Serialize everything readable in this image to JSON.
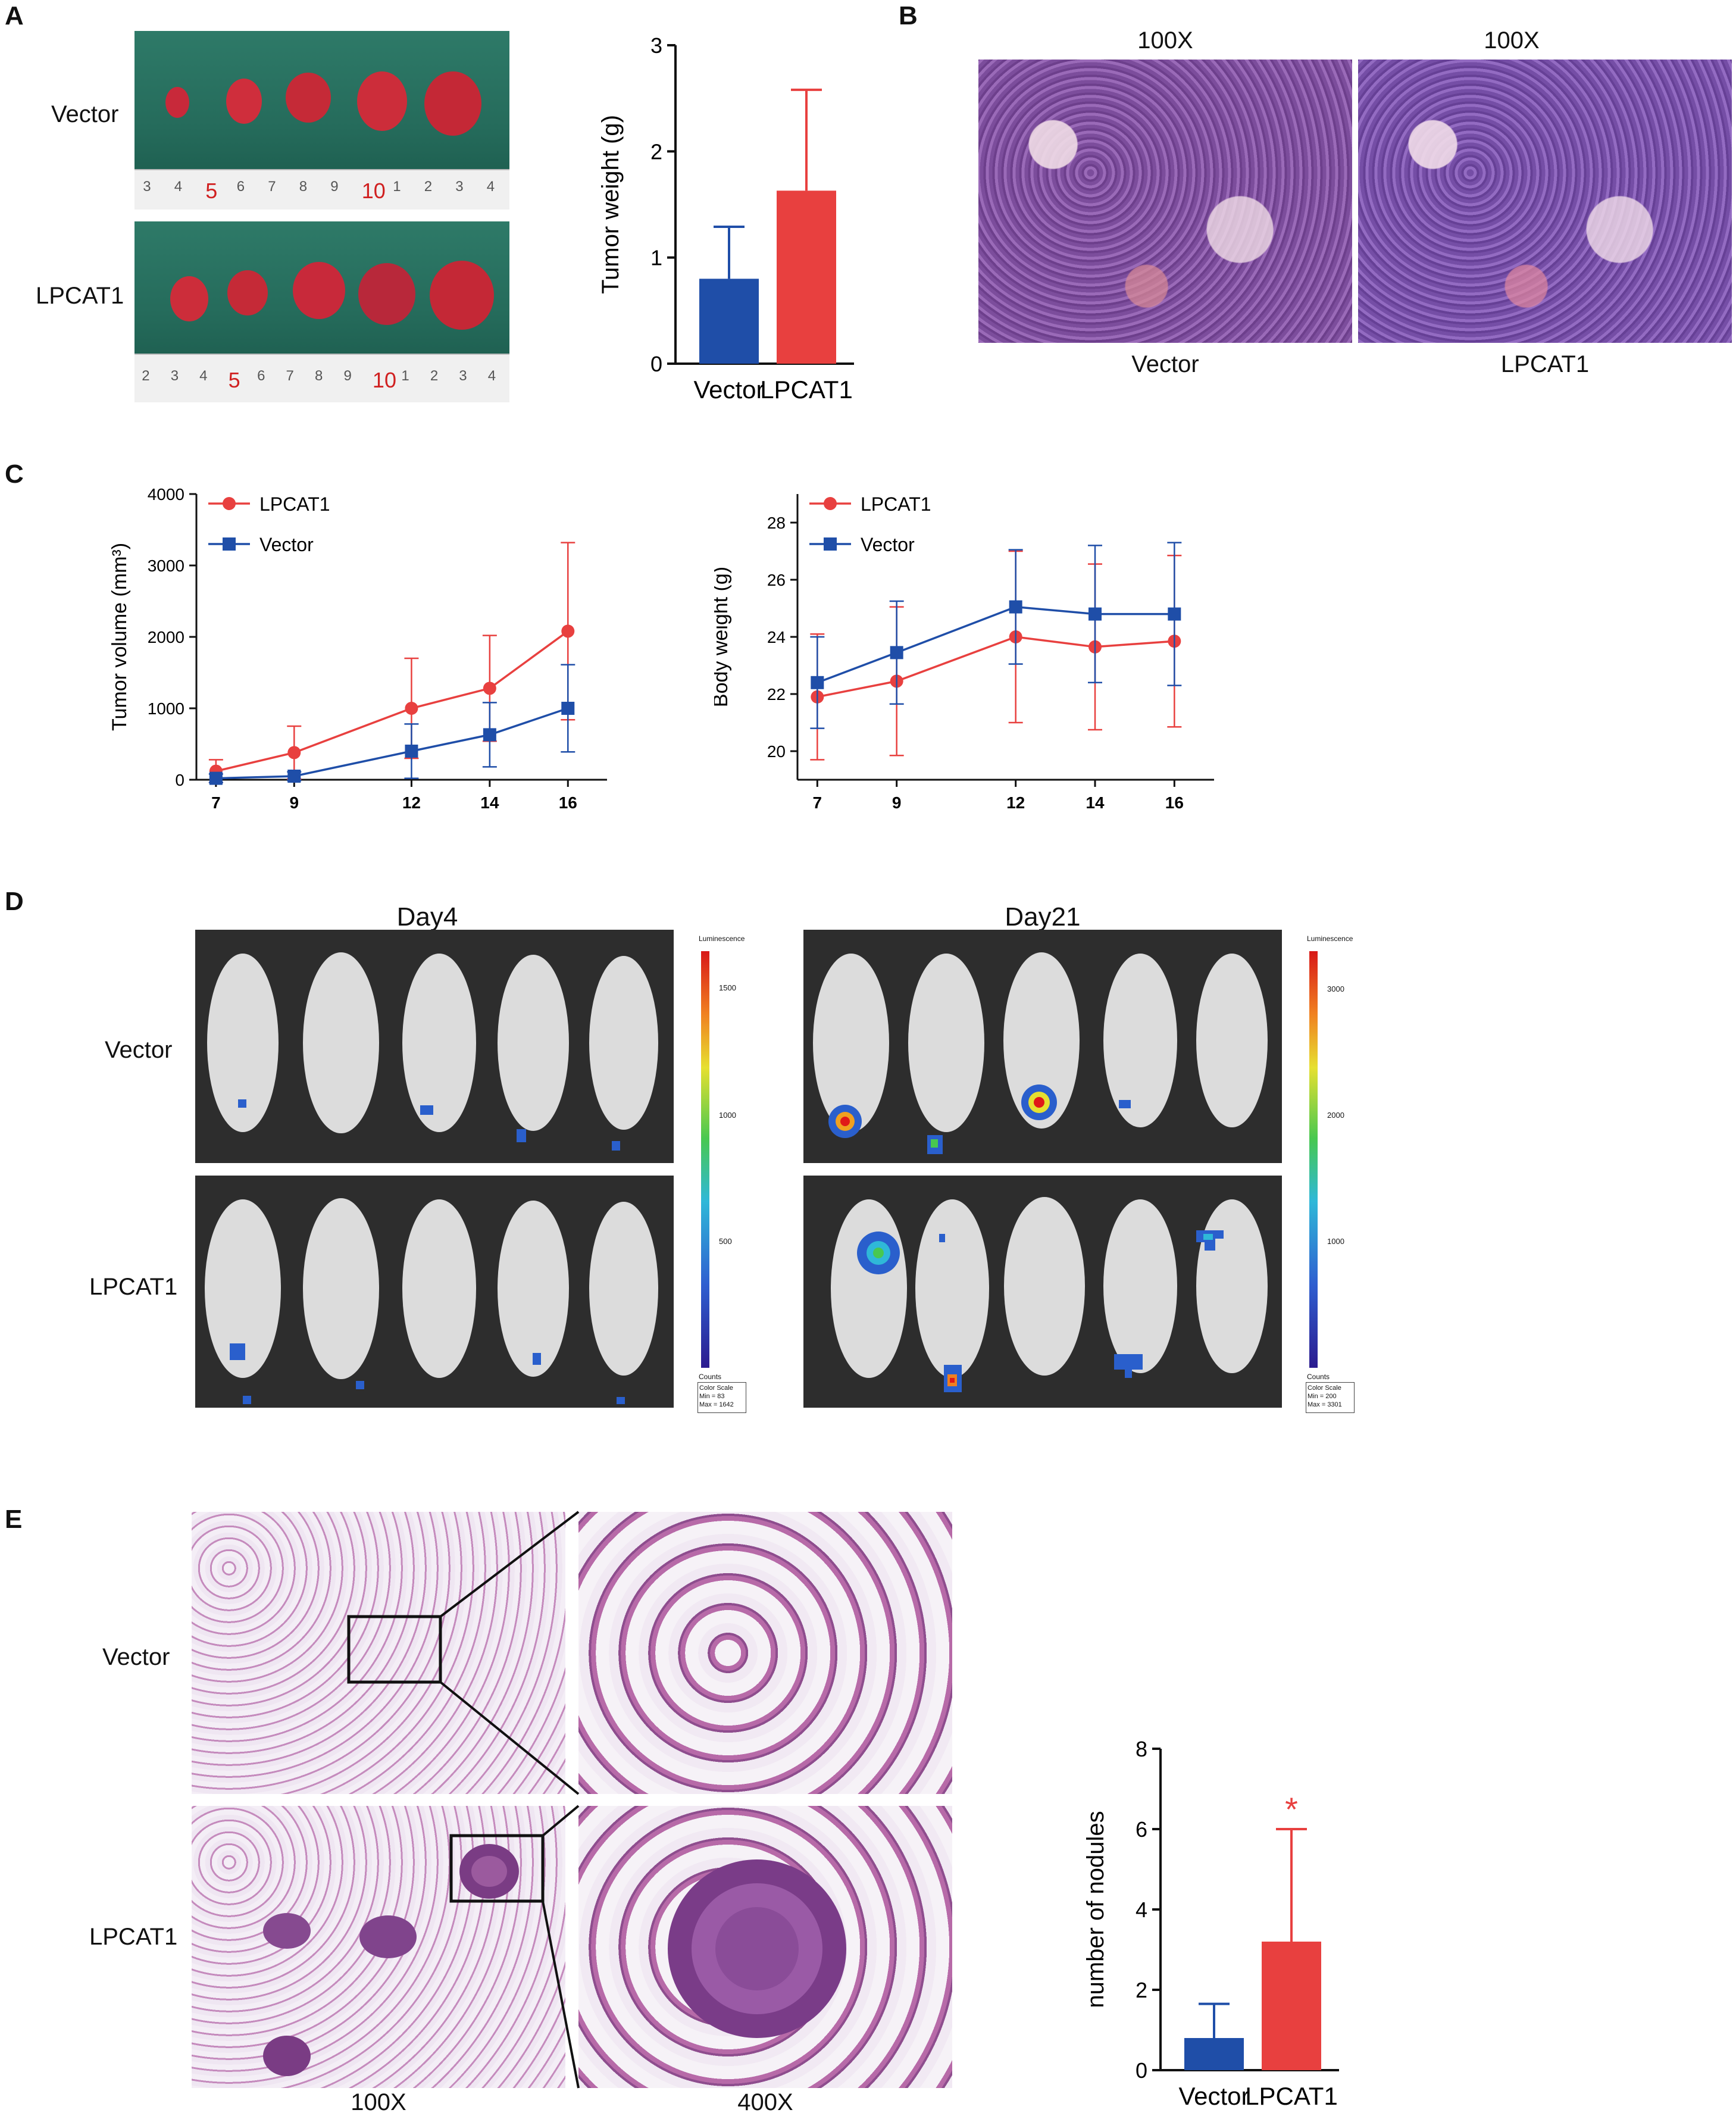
{
  "panels": {
    "A": {
      "label": "A",
      "photo_rows": [
        "Vector",
        "LPCAT1"
      ],
      "ruler_top": [
        "3",
        "4",
        "5",
        "6",
        "7",
        "8",
        "9",
        "10",
        "1",
        "2",
        "3",
        "4"
      ],
      "ruler_bottom": [
        "2",
        "3",
        "4",
        "5",
        "6",
        "7",
        "8",
        "9",
        "10",
        "1",
        "2",
        "3",
        "4"
      ]
    },
    "B": {
      "label": "B",
      "magnifications": [
        "100X",
        "100X"
      ],
      "captions": [
        "Vector",
        "LPCAT1"
      ]
    },
    "C": {
      "label": "C"
    },
    "D": {
      "label": "D",
      "days": [
        "Day4",
        "Day21"
      ],
      "rows": [
        "Vector",
        "LPCAT1"
      ],
      "colorbar_left": {
        "title": "Luminescence",
        "ticks": [
          "1500",
          "1000",
          "500"
        ],
        "units": "Counts",
        "scale_title": "Color Scale",
        "min": "Min = 83",
        "max": "Max = 1642"
      },
      "colorbar_right": {
        "title": "Luminescence",
        "ticks": [
          "3000",
          "2000",
          "1000"
        ],
        "units": "Counts",
        "scale_title": "Color Scale",
        "min": "Min = 200",
        "max": "Max = 3301"
      }
    },
    "E": {
      "label": "E",
      "rows": [
        "Vector",
        "LPCAT1"
      ],
      "magnifications": [
        "100X",
        "400X"
      ]
    }
  },
  "chart_data": [
    {
      "id": "tumor-weight",
      "type": "bar",
      "categories": [
        "Vector",
        "LPCAT1"
      ],
      "values": [
        0.8,
        1.63
      ],
      "errors": [
        0.49,
        0.95
      ],
      "colors": [
        "#1f4ea8",
        "#e8403f"
      ],
      "ylabel": "Tumor weight (g)",
      "ylim": [
        0,
        3
      ],
      "yticks": [
        "0",
        "1",
        "2",
        "3"
      ]
    },
    {
      "id": "tumor-volume",
      "type": "line",
      "x": [
        7,
        9,
        12,
        14,
        16
      ],
      "xticks": [
        "7",
        "9",
        "12",
        "14",
        "16"
      ],
      "ylabel": "Tumor volume (mm³)",
      "ylim": [
        0,
        4000
      ],
      "yticks": [
        "0",
        "1000",
        "2000",
        "3000",
        "4000"
      ],
      "legend": "top-left",
      "series": [
        {
          "name": "LPCAT1",
          "color": "#e8403f",
          "marker": "circle",
          "values": [
            120,
            380,
            1000,
            1280,
            2080
          ],
          "errors": [
            160,
            370,
            700,
            740,
            1240
          ]
        },
        {
          "name": "Vector",
          "color": "#1f4ea8",
          "marker": "square",
          "values": [
            20,
            50,
            400,
            630,
            1000
          ],
          "errors": [
            60,
            60,
            380,
            450,
            610
          ]
        }
      ]
    },
    {
      "id": "body-weight",
      "type": "line",
      "x": [
        7,
        9,
        12,
        14,
        16
      ],
      "xticks": [
        "7",
        "9",
        "12",
        "14",
        "16"
      ],
      "ylabel": "Body weight (g)",
      "ylim": [
        19,
        29
      ],
      "yticks": [
        "20",
        "22",
        "24",
        "26",
        "28"
      ],
      "legend": "top-left",
      "series": [
        {
          "name": "LPCAT1",
          "color": "#e8403f",
          "marker": "circle",
          "values": [
            21.9,
            22.45,
            24.0,
            23.65,
            23.85
          ],
          "errors": [
            2.2,
            2.6,
            3.0,
            2.9,
            3.0
          ]
        },
        {
          "name": "Vector",
          "color": "#1f4ea8",
          "marker": "square",
          "values": [
            22.4,
            23.45,
            25.05,
            24.8,
            24.8
          ],
          "errors": [
            1.6,
            1.8,
            2.0,
            2.4,
            2.5
          ]
        }
      ]
    },
    {
      "id": "nodules",
      "type": "bar",
      "categories": [
        "Vector",
        "LPCAT1"
      ],
      "values": [
        0.8,
        3.2
      ],
      "errors": [
        0.85,
        2.8
      ],
      "colors": [
        "#1f4ea8",
        "#e8403f"
      ],
      "ylabel": "number of nodules",
      "ylim": [
        0,
        8
      ],
      "yticks": [
        "0",
        "2",
        "4",
        "6",
        "8"
      ],
      "annotation": "*"
    }
  ]
}
